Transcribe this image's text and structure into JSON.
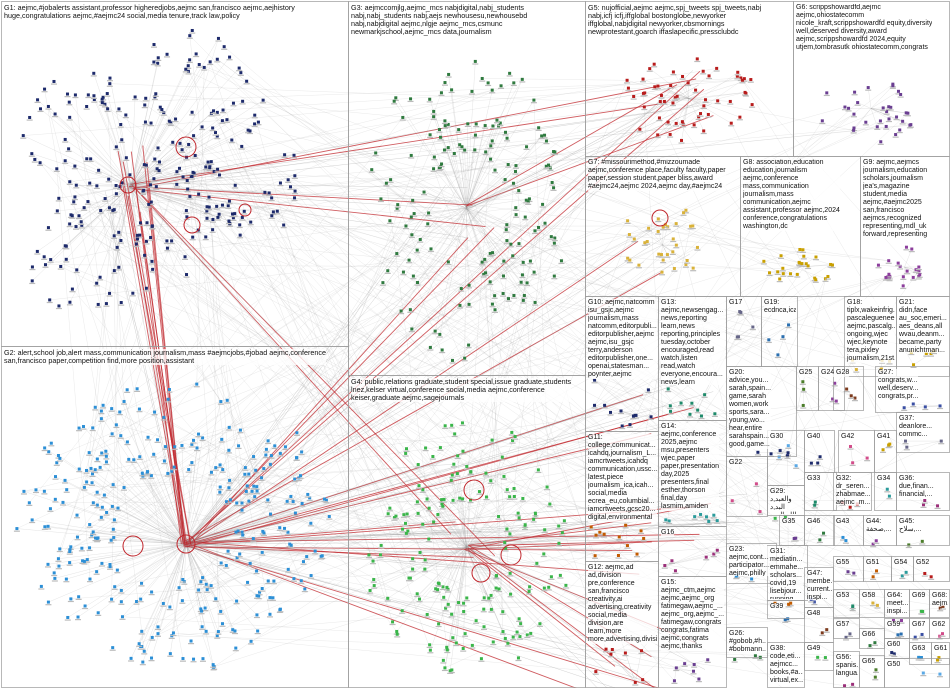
{
  "graph": {
    "colors": {
      "G1": "#1d2a6b",
      "G2": "#2c8fd6",
      "G3": "#2f7a3f",
      "G4": "#3ab54a",
      "G5": "#b81c1c",
      "G6": "#6a3e91",
      "G7": "#d9b23a",
      "G8": "#c9a000",
      "G9": "#8c3e9c",
      "G10": "#1d2a6b",
      "edge": "#9a9a9a",
      "edge_red": "#c0262c",
      "grid": "#9b9b9b"
    },
    "groups": [
      {
        "id": "G1",
        "label": "G1: aejmc,#jobalerts  assistant,professor  higheredjobs,aejmc  san,francisco  aejmc,aejhistory\nhuge,congratulations  aejmc,#aejmc24  social,media  tenure,track  law,policy"
      },
      {
        "id": "G2",
        "label": "G2: alert,school  job,alert  mass,communication  journalism,mass  #aejmcjobs,#jobad  aejmc,conference\nsan,francisco  paper,competition  find,more  position,assistant"
      },
      {
        "id": "G3",
        "label": "G3: aejmccomjlg,aejmc_mcs  nabjdigital,nabj_students\nnabj,nabj_students  nabj,aejs  newhousesu,newhousebd\nnabj,nabjdigital  aejmc,nlgje  aejmc_mcs,csmunc\nnewmarkjschool,aejmc_mcs  data,journalism"
      },
      {
        "id": "G4",
        "label": "G4: public,relations  graduate,student  special,issue  graduate,students\nlnez,kelser  virtual,conference  social,media  aejmc,conference\nkeiser,graduate  aejmc,sagejournals"
      },
      {
        "id": "G5",
        "label": "G5: nujofficial,aejmc  aejmc,spj_tweets  spj_tweets,nabj\nnabj,icfj  icfj,iffglobal  bostonglobe,newyorker\niffglobal,nabjdigital  newyorker,cbsmornings\nnewprotestant,goarch  iffaslapecific,pressclubdc"
      },
      {
        "id": "G6",
        "label": "G6: scrippshowardfd,aejmc\naejmc,ohiostatecomm\nnicole_kraft,scrippshowardfd  equity,diversity\nwell,deserved  diversity,award\naejmc,scrippshowardfd  2024,equity\nutjem,tombrasutk  ohiostatecomm,congrats"
      },
      {
        "id": "G7",
        "label": "G7: #missourimethod,#mizzoumade\naejmc,conference  place,faculty  faculty,paper\npaper,session  student,paper  bliss,award\n#aejmc24,aejmc  2024,aejmc  day,#aejmc24"
      },
      {
        "id": "G8",
        "label": "G8: association,education\neducation,journalism\naejmc,conference\nmass,communication\njournalism,mass\ncommunication,aejmc\nassistant,professor  aejmc,2024\nconference,congratulations\nwashington,dc"
      },
      {
        "id": "G9",
        "label": "G9: aejmc,aejmcs\njournalism,education\nscholars,journalism\njea's,magazine\nstudent,media\naejmc,#aejmc2025\nsan,francisco\naejmcs,recognized\nrepresenting,mdl_uk\nforward,representing"
      },
      {
        "id": "G10",
        "label": "G10: aejmc,natcomm\nisu_gsjc,aejmc\njournalism,mass\nnatcomm,editorpubli...\neditorpublisher,aejmc\naejmc,isu_gsjc\nterry,anderson\neditorpublisher,one...\nopenai,statesman...\npoynter,aejmc"
      },
      {
        "id": "G11",
        "label": "G11:\ncollege,communicat...\nicahdq,journalism_L...\niamcrtweets,icahdq\ncommunication,ussc...\nlatest,piece\njournalism_ica,icah...\nsocial,media\necrea_eu,columbial...\niamcrtweets,gcsc20...\ndigital,environmental"
      },
      {
        "id": "G12",
        "label": "G12: aejmc,ad\nad,division\npre,conference\nsan,francisco\ncreativity,ai\nadvertising,creativity\nsocial,media\ndivision,are\nlearn,more\nmore,advertising,division"
      },
      {
        "id": "G13",
        "label": "G13: aejmc,newsengag...\nnews,reporting\nlearn,news\nreporting,principles\ntuesday,october\nencouraged,read\nwatch,listen\nread,watch\neveryone,encoura...\nnews,learn"
      },
      {
        "id": "G14",
        "label": "G14:\naejmc,conference\n2025,aejmc\nmsu,presenters\nwjec,paper\npaper,presentation\nday,2025\npresenters,final\nesther,thorson\nfinal,day\nlasmim,amiden"
      },
      {
        "id": "G15",
        "label": "G15:\naejmc_ctm,aejmc\naejmc,aejmc_org\nfatimegaw,aejmc_...\naejmc_org,aejmc_...\nfatimegaw,congrats\ncongrats,fatima\naejmc,congrats\naejmc,thanks"
      },
      {
        "id": "G16",
        "label": "G16"
      },
      {
        "id": "G17",
        "label": "G17"
      },
      {
        "id": "G18",
        "label": "G18:\ntiplx,wakeinfrig...\npascaleguenee,t...\naejmc,pascalg...\nongoing,wjec\nwjec,keynote\ntera,pixley\njournalism,21st..."
      },
      {
        "id": "G19",
        "label": "G19:\necdnca,icaenvi..."
      },
      {
        "id": "G20",
        "label": "G20:\nadvice,you...\nsarah,spain...\ngame,sarah\nwomen,work\nsports,sara...\nyoung,wo...\nhear,entire\nsarahspain...\ngood,game..."
      },
      {
        "id": "G21",
        "label": "G21:\ndidn,face\nau_soc,emeri...\naes_deans,all\nwvau,deanm...\nbecame,party\nanunichtman..."
      },
      {
        "id": "G22",
        "label": "G22"
      },
      {
        "id": "G23",
        "label": "G23:\naejmc,cont...\nparticipator...\naejmc,philly"
      },
      {
        "id": "G24",
        "label": "G24"
      },
      {
        "id": "G25",
        "label": "G25"
      },
      {
        "id": "G26",
        "label": "G26:\n#gobob,#h...\n#bobmann..."
      },
      {
        "id": "G27",
        "label": "G27:\ncongrats,w...\nwell,deserv...\ncongrats,pr..."
      },
      {
        "id": "G28",
        "label": "G28"
      },
      {
        "id": "G29",
        "label": "G29:\nوالعبد,د\nالبد,د\nبدالله,الدود"
      },
      {
        "id": "G30",
        "label": "G30"
      },
      {
        "id": "G31",
        "label": "G31:\nmediatin...\nemmahe...\nscholars...\ncovid,19\nlisebjour...\nrunning..."
      },
      {
        "id": "G32",
        "label": "G32:\ndr_seren...\nzhabmae...\naejmc_m..."
      },
      {
        "id": "G33",
        "label": "G33"
      },
      {
        "id": "G34",
        "label": "G34"
      },
      {
        "id": "G35",
        "label": "G35"
      },
      {
        "id": "G36",
        "label": "G36:\ndue,finan...\nfinancial,..."
      },
      {
        "id": "G37",
        "label": "G37:\ndeanlore...\ncommc..."
      },
      {
        "id": "G38",
        "label": "G38:\ncode,eti...\naejmcc...\nbooks,#a...\nvirtual,ex..."
      },
      {
        "id": "G39",
        "label": "G39"
      },
      {
        "id": "G40",
        "label": "G40"
      },
      {
        "id": "G41",
        "label": "G41"
      },
      {
        "id": "G42",
        "label": "G42"
      },
      {
        "id": "G43",
        "label": "G43"
      },
      {
        "id": "G44",
        "label": "G44:\nصحفة,..."
      },
      {
        "id": "G45",
        "label": "G45:\nسلاح,..."
      },
      {
        "id": "G46",
        "label": "G46"
      },
      {
        "id": "G47",
        "label": "G47:\nmembe...\ncurrent...\ninspi..."
      },
      {
        "id": "G48",
        "label": "G48"
      },
      {
        "id": "G49",
        "label": "G49"
      },
      {
        "id": "G50",
        "label": "G50"
      },
      {
        "id": "G51",
        "label": "G51"
      },
      {
        "id": "G52",
        "label": "G52"
      },
      {
        "id": "G53",
        "label": "G53"
      },
      {
        "id": "G54",
        "label": "G54"
      },
      {
        "id": "G55",
        "label": "G55"
      },
      {
        "id": "G56",
        "label": "G56:\nspanis...\nlangua..."
      },
      {
        "id": "G57",
        "label": "G57"
      },
      {
        "id": "G58",
        "label": "G58"
      },
      {
        "id": "G59",
        "label": "G59"
      },
      {
        "id": "G60",
        "label": "G60"
      },
      {
        "id": "G61",
        "label": "G61"
      },
      {
        "id": "G62",
        "label": "G62"
      },
      {
        "id": "G63",
        "label": "G63"
      },
      {
        "id": "G64",
        "label": "G64:\nmeet...\ninspi..."
      },
      {
        "id": "G65",
        "label": "G65"
      },
      {
        "id": "G66",
        "label": "G66"
      },
      {
        "id": "G67",
        "label": "G67"
      },
      {
        "id": "G68",
        "label": "G68:\naejm..."
      },
      {
        "id": "G69",
        "label": "G69"
      }
    ]
  }
}
